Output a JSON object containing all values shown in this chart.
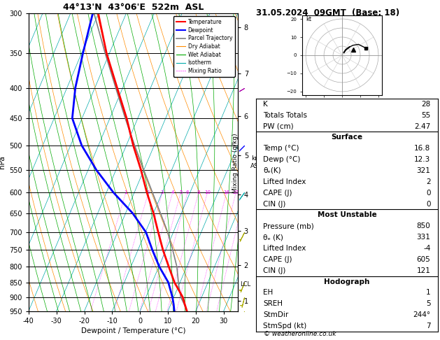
{
  "title_sounding": "44°13'N  43°06'E  522m  ASL",
  "title_date": "31.05.2024  09GMT  (Base: 18)",
  "xlabel": "Dewpoint / Temperature (°C)",
  "x_min": -40,
  "x_max": 35,
  "p_min": 300,
  "p_max": 950,
  "p_levels": [
    300,
    350,
    400,
    450,
    500,
    550,
    600,
    650,
    700,
    750,
    800,
    850,
    900,
    950
  ],
  "km_labels": [
    1,
    2,
    3,
    4,
    5,
    6,
    7,
    8
  ],
  "km_pressures": [
    912,
    796,
    696,
    605,
    520,
    446,
    378,
    316
  ],
  "lcl_pressure": 857,
  "colors": {
    "temperature": "#ff0000",
    "dewpoint": "#0000ff",
    "parcel": "#808080",
    "dry_adiabat": "#ff8c00",
    "wet_adiabat": "#00aa00",
    "isotherm": "#00aaaa",
    "mixing_ratio": "#ff00ff"
  },
  "temp_profile": {
    "pressure": [
      950,
      925,
      900,
      850,
      800,
      750,
      700,
      650,
      600,
      550,
      500,
      450,
      400,
      350,
      300
    ],
    "temperature": [
      16.8,
      15.0,
      13.2,
      8.0,
      3.6,
      -1.0,
      -5.4,
      -10.0,
      -15.5,
      -21.0,
      -27.5,
      -34.0,
      -42.0,
      -51.0,
      -60.0
    ]
  },
  "dewp_profile": {
    "pressure": [
      950,
      925,
      900,
      850,
      800,
      750,
      700,
      650,
      600,
      550,
      500,
      450,
      400,
      350,
      300
    ],
    "temperature": [
      12.3,
      11.0,
      9.5,
      5.8,
      0.2,
      -4.8,
      -9.8,
      -17.5,
      -27.5,
      -37.0,
      -46.0,
      -53.5,
      -57.0,
      -59.5,
      -62.0
    ]
  },
  "parcel_profile": {
    "pressure": [
      950,
      925,
      900,
      857,
      800,
      750,
      700,
      650,
      600,
      550,
      500,
      450,
      400,
      350,
      300
    ],
    "temperature": [
      16.8,
      14.8,
      12.5,
      9.8,
      6.5,
      2.5,
      -2.0,
      -7.5,
      -13.5,
      -20.0,
      -27.0,
      -34.5,
      -42.5,
      -51.5,
      -61.5
    ]
  },
  "stats": {
    "K": 28,
    "Totals_Totals": 55,
    "PW_cm": "2.47",
    "surface_temp": "16.8",
    "surface_dewp": "12.3",
    "surface_theta_e": 321,
    "surface_lifted_index": 2,
    "surface_cape": 0,
    "surface_cin": 0,
    "mu_pressure": 850,
    "mu_theta_e": 331,
    "mu_lifted_index": -4,
    "mu_cape": 605,
    "mu_cin": 121,
    "hodograph_eh": 1,
    "hodograph_sreh": 5,
    "storm_dir": "244°",
    "storm_spd": 7
  },
  "wind_barb_pressures": [
    950,
    900,
    850,
    700,
    600,
    500,
    400
  ],
  "wind_barb_us": [
    1,
    1,
    2,
    3,
    5,
    8,
    12
  ],
  "wind_barb_vs": [
    3,
    4,
    5,
    6,
    7,
    8,
    7
  ],
  "wind_barb_colors": [
    "#aaaa00",
    "#aaaa00",
    "#aaaa00",
    "#aaaa00",
    "#00aaaa",
    "#0000ff",
    "#aa00aa"
  ]
}
